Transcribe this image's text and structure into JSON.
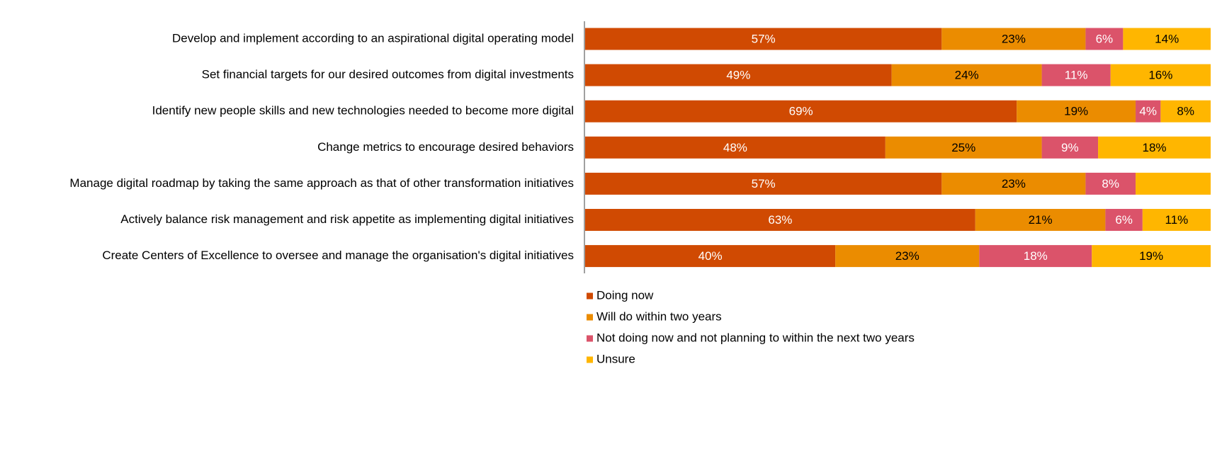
{
  "chart_data": {
    "type": "bar_stacked_percent",
    "orientation": "horizontal",
    "categories": [
      "Develop and implement according to an aspirational digital operating model",
      "Set financial targets for our desired outcomes from digital investments",
      "Identify new people skills and new technologies needed to become more digital",
      "Change metrics to encourage desired behaviors ",
      "Manage digital roadmap by taking the same approach as that of other transformation initiatives",
      "Actively balance risk management and risk appetite as implementing digital initiatives",
      "Create Centers of Excellence to oversee and manage the organisation's digital initiatives"
    ],
    "series": [
      {
        "name": "Doing now",
        "color": "#D04A02",
        "label_color": "#ffffff",
        "values": [
          57,
          49,
          69,
          48,
          57,
          63,
          40
        ],
        "value_labels": [
          "57%",
          "49%",
          "69%",
          "48%",
          "57%",
          "63%",
          "40%"
        ]
      },
      {
        "name": "Will do within two years",
        "color": "#EB8C00",
        "label_color": "#000000",
        "values": [
          23,
          24,
          19,
          25,
          23,
          21,
          23
        ],
        "value_labels": [
          "23%",
          "24%",
          "19%",
          "25%",
          "23%",
          "21%",
          "23%"
        ]
      },
      {
        "name": "Not doing now and not planning to within the next two years",
        "color": "#DB536A",
        "label_color": "#ffffff",
        "values": [
          6,
          11,
          4,
          9,
          8,
          6,
          18
        ],
        "value_labels": [
          "6%",
          "11%",
          "4%",
          "9%",
          "8%",
          "6%",
          "18%"
        ]
      },
      {
        "name": "Unsure",
        "color": "#FFB600",
        "label_color": "#000000",
        "values": [
          14,
          16,
          8,
          18,
          12,
          11,
          19
        ],
        "value_labels": [
          "14%",
          "16%",
          "8%",
          "18%",
          null,
          "11%",
          "19%"
        ]
      }
    ],
    "legend": "bottom"
  }
}
